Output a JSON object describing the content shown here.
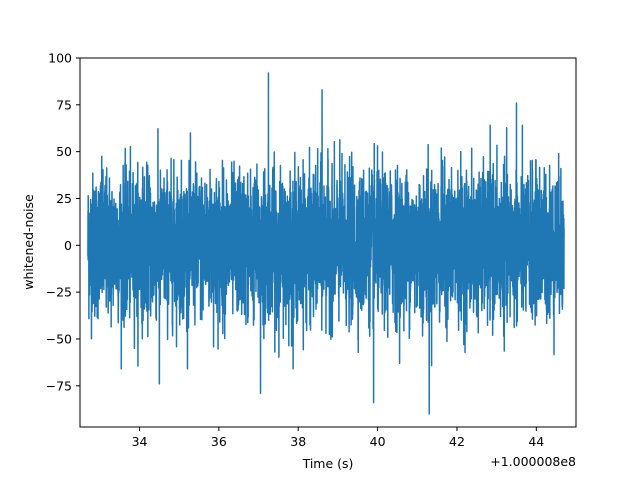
{
  "chart_data": {
    "type": "line",
    "title": "",
    "xlabel": "Time (s)",
    "ylabel": "whitened-noise",
    "x_offset_label": "+1.000008e8",
    "xlim": [
      32.5,
      45.0
    ],
    "ylim": [
      -97,
      100
    ],
    "x_range": [
      32.7,
      44.7
    ],
    "xticks": [
      34,
      36,
      38,
      40,
      42,
      44
    ],
    "xtick_labels": [
      "34",
      "36",
      "38",
      "40",
      "42",
      "44"
    ],
    "yticks": [
      100,
      75,
      50,
      25,
      0,
      -25,
      -50,
      -75
    ],
    "ytick_labels": [
      "100",
      "75",
      "50",
      "25",
      "0",
      "−25",
      "−50",
      "−75"
    ],
    "grid": false,
    "series": [
      {
        "color": "#1f77b4",
        "note": "dense whitened noise trace; envelope roughly ±45 with spikes",
        "peaks": [
          {
            "x": 37.25,
            "y": 92
          },
          {
            "x": 38.6,
            "y": 83
          },
          {
            "x": 34.5,
            "y": 72
          },
          {
            "x": 43.5,
            "y": 76
          },
          {
            "x": 41.3,
            "y": -90
          },
          {
            "x": 39.9,
            "y": -84
          },
          {
            "x": 37.05,
            "y": -79
          },
          {
            "x": 34.5,
            "y": -74
          }
        ]
      }
    ]
  }
}
